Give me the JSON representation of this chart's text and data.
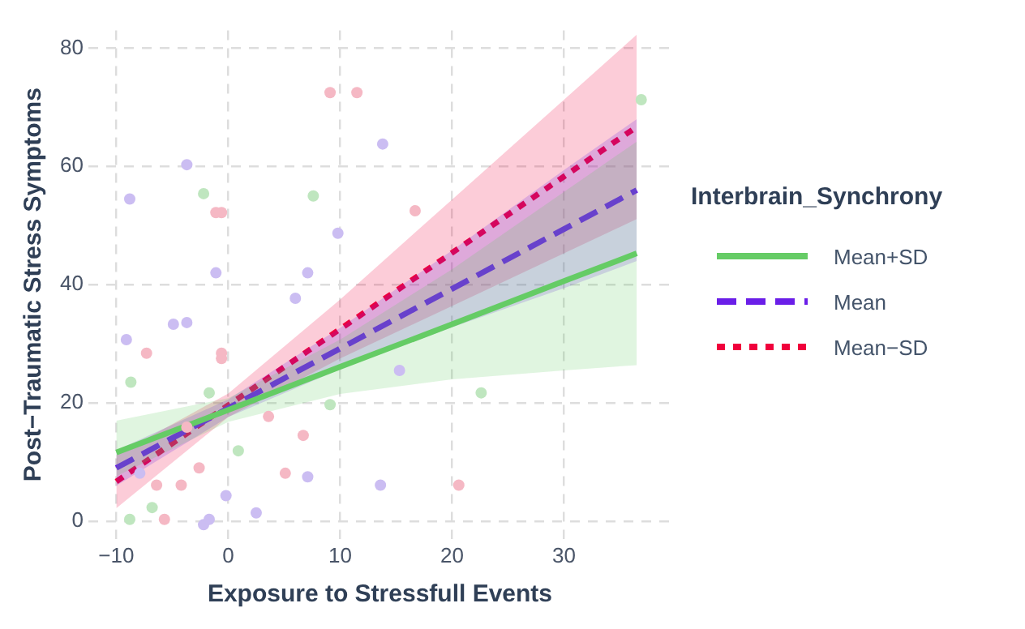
{
  "chart_data": {
    "type": "line",
    "xlabel": "Exposure to Stressfull Events",
    "ylabel": "Post−Traumatic Stress Symptoms",
    "legend_title": "Interbrain_Synchrony",
    "xlim": [
      -12.5,
      39.6
    ],
    "xticks": [
      {
        "value": -10,
        "label": "−10"
      },
      0,
      10,
      20,
      30
    ],
    "ylim": [
      -3,
      83
    ],
    "yticks": [
      0,
      20,
      40,
      60,
      80
    ],
    "grid": true,
    "legend": "right",
    "series": [
      {
        "type": "scatter",
        "marker": "circle",
        "x": [
          9.1,
          11.5,
          13.8,
          7.6,
          16.7,
          9.8,
          7.1,
          6,
          15.3,
          22.6,
          13.6,
          20.6,
          36.9,
          -1.1,
          -3.7,
          -2.2,
          -0.6,
          -4.9,
          -0.6,
          9.1,
          6.7,
          -8.8,
          -9.1,
          -7.3,
          -8.7,
          -3.7,
          -1.1,
          -6.4,
          -8.8,
          -5.7,
          -2.2,
          -3.7,
          -7.9,
          -1.7,
          -0.6,
          -4.2,
          2.5,
          5.1,
          7.1,
          0.9,
          3.6,
          -0.2,
          -2.6,
          -6.8,
          -1.7
        ],
        "values": [
          72.5,
          72.5,
          63.8,
          55,
          52.5,
          48.7,
          42,
          37.7,
          25.5,
          21.7,
          6.1,
          6.1,
          71.3,
          42,
          60.3,
          55.4,
          52.2,
          33.3,
          28.4,
          19.7,
          14.5,
          54.5,
          30.7,
          28.4,
          23.5,
          33.6,
          52.2,
          6.1,
          0.3,
          0.3,
          -0.6,
          15.9,
          8.1,
          21.7,
          27.5,
          6.1,
          1.4,
          8.1,
          7.5,
          11.9,
          17.7,
          4.3,
          9,
          2.3,
          0.3
        ],
        "colors": [
          "#f5b8c4",
          "#f5b8c4",
          "#cbbdf2",
          "#bfe6bf",
          "#f5b8c4",
          "#cbbdf2",
          "#cbbdf2",
          "#cbbdf2",
          "#cbbdf2",
          "#bfe6bf",
          "#cbbdf2",
          "#f5b8c4",
          "#bfe6bf",
          "#cbbdf2",
          "#cbbdf2",
          "#bfe6bf",
          "#f5b8c4",
          "#cbbdf2",
          "#f5b8c4",
          "#bfe6bf",
          "#f5b8c4",
          "#cbbdf2",
          "#cbbdf2",
          "#f5b8c4",
          "#bfe6bf",
          "#cbbdf2",
          "#f5b8c4",
          "#f5b8c4",
          "#bfe6bf",
          "#f5b8c4",
          "#cbbdf2",
          "#f5b8c4",
          "#cbbdf2",
          "#bfe6bf",
          "#f5b8c4",
          "#f5b8c4",
          "#cbbdf2",
          "#f5b8c4",
          "#cbbdf2",
          "#bfe6bf",
          "#f5b8c4",
          "#cbbdf2",
          "#f5b8c4",
          "#bfe6bf",
          "#cbbdf2"
        ]
      },
      {
        "type": "line",
        "name": "Mean+SD",
        "color": "#66cc66",
        "line_style": "solid",
        "x": [
          -10,
          0,
          10,
          20,
          30,
          36.5
        ],
        "values": [
          11.6,
          18.8,
          26.1,
          33.3,
          40.6,
          45.3
        ],
        "lower": [
          7.6,
          16.8,
          21.5,
          24,
          25.5,
          26.4
        ],
        "upper": [
          17,
          20.8,
          30.7,
          42.6,
          55.7,
          64.2
        ]
      },
      {
        "type": "line",
        "name": "Mean",
        "color": "#6a1ee8",
        "line_style": "dashed",
        "x": [
          -10,
          0,
          10,
          20,
          30,
          36.5
        ],
        "values": [
          9,
          19.1,
          29.2,
          39.3,
          49.4,
          56
        ],
        "lower": [
          6,
          17.6,
          25.7,
          32.8,
          39.4,
          44
        ],
        "upper": [
          12,
          20.6,
          32.7,
          45.8,
          59.4,
          68
        ]
      },
      {
        "type": "line",
        "name": "Mean−SD",
        "color": "#f0003c",
        "line_style": "dotted",
        "x": [
          -10,
          0,
          10,
          20,
          30,
          36.5
        ],
        "values": [
          6.7,
          19.6,
          32.5,
          45.4,
          58.3,
          66.7
        ],
        "lower": [
          2.2,
          17.6,
          27.5,
          36.4,
          45.3,
          51.1
        ],
        "upper": [
          11.2,
          21.6,
          37.5,
          54.4,
          71.3,
          82.3
        ]
      }
    ]
  }
}
